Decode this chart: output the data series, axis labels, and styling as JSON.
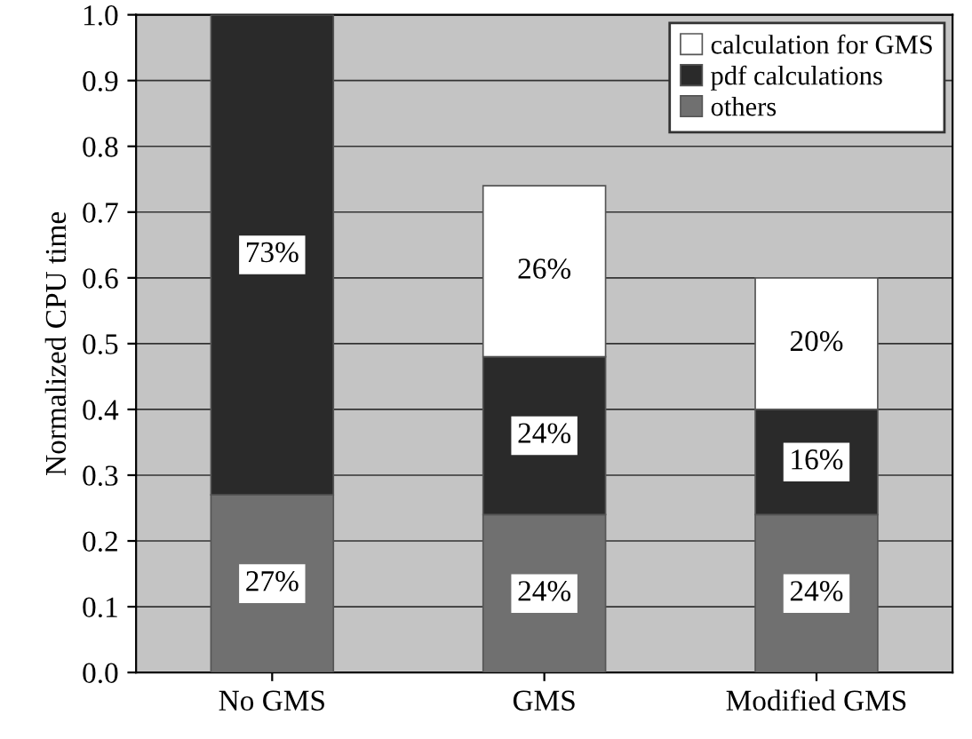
{
  "chart_data": {
    "type": "bar",
    "stacked": true,
    "ylabel": "Normalized CPU time",
    "categories": [
      "No GMS",
      "GMS",
      "Modified GMS"
    ],
    "series": [
      {
        "name": "others",
        "color": "#707070",
        "values": [
          0.27,
          0.24,
          0.24
        ],
        "value_labels": [
          "27%",
          "24%",
          "24%"
        ]
      },
      {
        "name": "pdf calculations",
        "color": "#2a2a2a",
        "values": [
          0.73,
          0.24,
          0.16
        ],
        "value_labels": [
          "73%",
          "24%",
          "16%"
        ]
      },
      {
        "name": "calculation for GMS",
        "color": "#ffffff",
        "values": [
          null,
          0.26,
          0.2
        ],
        "value_labels": [
          null,
          "26%",
          "20%"
        ]
      }
    ],
    "ylim": [
      0,
      1.0
    ],
    "yticks": [
      {
        "value": 0,
        "label": "0.0"
      },
      0.1,
      0.2,
      0.3,
      0.4,
      0.5,
      0.6,
      0.7,
      0.8,
      0.9,
      {
        "value": 1,
        "label": "1.0"
      }
    ],
    "grid": "y",
    "legend": "top right"
  }
}
